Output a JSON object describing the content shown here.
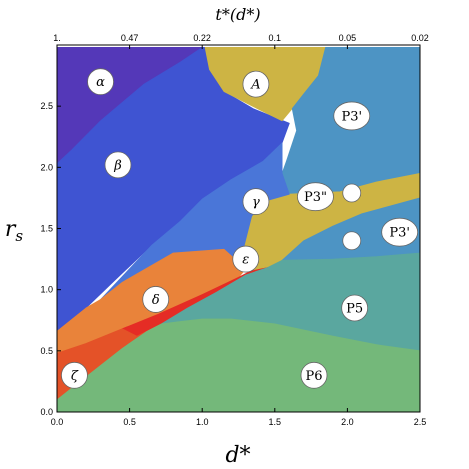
{
  "chart_data": {
    "type": "heatmap",
    "xlabel": "d*",
    "ylabel": "r",
    "ylabel_sub": "s",
    "top_xlabel": "t*(d*)",
    "xlim": [
      0,
      2.5
    ],
    "ylim": [
      0,
      3.0
    ],
    "x_ticks": [
      "0.0",
      "0.5",
      "1.0",
      "1.5",
      "2.0",
      "2.5"
    ],
    "x_tick_values": [
      0,
      0.5,
      1.0,
      1.5,
      2.0,
      2.5
    ],
    "y_ticks": [
      "0.0",
      "0.5",
      "1.0",
      "1.5",
      "2.0",
      "2.5"
    ],
    "y_tick_values": [
      0,
      0.5,
      1.0,
      1.5,
      2.0,
      2.5
    ],
    "top_ticks": [
      "1.",
      "0.47",
      "0.22",
      "0.1",
      "0.05",
      "0.02"
    ],
    "top_tick_positions": [
      0,
      0.5,
      1.0,
      1.5,
      2.0,
      2.5
    ],
    "colors": {
      "alpha": "#5438b8",
      "beta": "#3f54d2",
      "A": "#cdb444",
      "P3p": "#4d94c4",
      "gamma": "#4a76d8",
      "delta": "#e9833a",
      "epsilon": "#e52c25",
      "zeta": "#e45228",
      "P5": "#5aa79f",
      "P6": "#74b87a"
    },
    "regions": [
      {
        "name": "alpha",
        "label": "α",
        "italic": true,
        "color_key": "alpha",
        "label_pos": [
          0.3,
          2.7
        ],
        "polygon": [
          [
            0,
            2.98
          ],
          [
            1.0,
            2.98
          ],
          [
            0.85,
            2.86
          ],
          [
            0.6,
            2.68
          ],
          [
            0.3,
            2.38
          ],
          [
            0.1,
            2.14
          ],
          [
            0,
            2.03
          ]
        ]
      },
      {
        "name": "beta",
        "label": "β",
        "italic": true,
        "color_key": "beta",
        "label_pos": [
          0.42,
          2.02
        ],
        "polygon": [
          [
            0,
            2.03
          ],
          [
            0.1,
            2.14
          ],
          [
            0.3,
            2.38
          ],
          [
            0.6,
            2.68
          ],
          [
            0.85,
            2.86
          ],
          [
            1.0,
            2.98
          ],
          [
            1.02,
            2.98
          ],
          [
            1.05,
            2.8
          ],
          [
            1.15,
            2.62
          ],
          [
            1.35,
            2.48
          ],
          [
            1.6,
            2.36
          ],
          [
            1.55,
            2.2
          ],
          [
            1.42,
            2.05
          ],
          [
            1.2,
            1.9
          ],
          [
            1.0,
            1.74
          ],
          [
            0.85,
            1.56
          ],
          [
            0.65,
            1.36
          ],
          [
            0.4,
            1.08
          ],
          [
            0.2,
            0.85
          ],
          [
            0,
            0.66
          ]
        ]
      },
      {
        "name": "A",
        "label": "A",
        "italic": true,
        "color_key": "A",
        "label_pos": [
          1.37,
          2.68
        ],
        "polygon": [
          [
            1.02,
            2.98
          ],
          [
            1.85,
            2.98
          ],
          [
            1.8,
            2.75
          ],
          [
            1.7,
            2.6
          ],
          [
            1.62,
            2.48
          ],
          [
            1.55,
            2.38
          ],
          [
            1.38,
            2.48
          ],
          [
            1.15,
            2.62
          ],
          [
            1.05,
            2.8
          ]
        ]
      },
      {
        "name": "P3p-top",
        "label": "P3'",
        "italic": false,
        "color_key": "P3p",
        "label_pos": [
          2.03,
          2.42
        ],
        "polygon": [
          [
            1.85,
            2.98
          ],
          [
            2.5,
            2.98
          ],
          [
            2.5,
            1.95
          ],
          [
            2.2,
            1.88
          ],
          [
            1.95,
            1.8
          ],
          [
            1.7,
            1.78
          ],
          [
            1.6,
            1.78
          ],
          [
            1.55,
            1.95
          ],
          [
            1.58,
            2.05
          ],
          [
            1.65,
            2.3
          ],
          [
            1.62,
            2.48
          ],
          [
            1.7,
            2.6
          ],
          [
            1.8,
            2.75
          ]
        ]
      },
      {
        "name": "P3pp",
        "label": "P3\"",
        "italic": false,
        "color_key": "A",
        "label_pos": [
          1.78,
          1.76
        ],
        "polygon": [
          [
            1.6,
            1.78
          ],
          [
            1.95,
            1.8
          ],
          [
            2.2,
            1.88
          ],
          [
            2.5,
            1.95
          ],
          [
            2.5,
            1.75
          ],
          [
            2.1,
            1.62
          ],
          [
            1.9,
            1.52
          ],
          [
            1.7,
            1.4
          ],
          [
            1.55,
            1.24
          ],
          [
            1.45,
            1.18
          ],
          [
            1.33,
            1.15
          ],
          [
            1.28,
            1.32
          ],
          [
            1.34,
            1.6
          ],
          [
            1.42,
            1.72
          ]
        ]
      },
      {
        "name": "P3p-right",
        "label": "P3'",
        "italic": false,
        "color_key": "P3p",
        "label_pos": [
          2.36,
          1.47
        ],
        "polygon": [
          [
            1.55,
            1.24
          ],
          [
            1.7,
            1.4
          ],
          [
            1.9,
            1.52
          ],
          [
            2.1,
            1.62
          ],
          [
            2.5,
            1.75
          ],
          [
            2.5,
            1.3
          ],
          [
            2.2,
            1.27
          ],
          [
            1.9,
            1.25
          ]
        ]
      },
      {
        "name": "gamma",
        "label": "γ",
        "italic": true,
        "color_key": "gamma",
        "label_pos": [
          1.37,
          1.72
        ],
        "polygon": [
          [
            0.3,
            0.92
          ],
          [
            0.65,
            1.36
          ],
          [
            0.85,
            1.56
          ],
          [
            1.0,
            1.74
          ],
          [
            1.2,
            1.9
          ],
          [
            1.42,
            2.05
          ],
          [
            1.55,
            2.2
          ],
          [
            1.55,
            1.95
          ],
          [
            1.6,
            1.78
          ],
          [
            1.42,
            1.72
          ],
          [
            1.34,
            1.6
          ],
          [
            1.28,
            1.32
          ],
          [
            1.3,
            1.17
          ],
          [
            1.15,
            1.33
          ],
          [
            0.8,
            1.3
          ],
          [
            0.45,
            1.06
          ]
        ]
      },
      {
        "name": "delta",
        "label": "δ",
        "italic": true,
        "color_key": "delta",
        "label_pos": [
          0.68,
          0.92
        ],
        "polygon": [
          [
            0,
            0.66
          ],
          [
            0.2,
            0.85
          ],
          [
            0.3,
            0.92
          ],
          [
            0.45,
            1.06
          ],
          [
            0.8,
            1.3
          ],
          [
            1.15,
            1.33
          ],
          [
            1.3,
            1.17
          ],
          [
            1.25,
            1.1
          ],
          [
            1.0,
            0.96
          ],
          [
            0.7,
            0.8
          ],
          [
            0.45,
            0.68
          ],
          [
            0.2,
            0.56
          ],
          [
            0,
            0.48
          ]
        ]
      },
      {
        "name": "epsilon",
        "label": "ε",
        "italic": true,
        "color_key": "epsilon",
        "label_pos": [
          1.3,
          1.25
        ],
        "polygon": [
          [
            0.45,
            0.68
          ],
          [
            0.7,
            0.8
          ],
          [
            1.0,
            0.96
          ],
          [
            1.25,
            1.1
          ],
          [
            1.33,
            1.15
          ],
          [
            1.45,
            1.18
          ],
          [
            1.3,
            1.12
          ],
          [
            1.1,
            0.98
          ],
          [
            0.9,
            0.85
          ],
          [
            0.72,
            0.72
          ],
          [
            0.55,
            0.62
          ]
        ]
      },
      {
        "name": "zeta",
        "label": "ζ",
        "italic": true,
        "color_key": "zeta",
        "label_pos": [
          0.12,
          0.3
        ],
        "polygon": [
          [
            0,
            0.48
          ],
          [
            0.2,
            0.56
          ],
          [
            0.45,
            0.68
          ],
          [
            0.55,
            0.62
          ],
          [
            0.72,
            0.72
          ],
          [
            0.62,
            0.66
          ],
          [
            0.45,
            0.52
          ],
          [
            0.3,
            0.38
          ],
          [
            0.15,
            0.24
          ],
          [
            0,
            0.1
          ]
        ]
      },
      {
        "name": "P5",
        "label": "P5",
        "italic": false,
        "color_key": "P5",
        "label_pos": [
          2.05,
          0.85
        ],
        "polygon": [
          [
            0.72,
            0.72
          ],
          [
            0.9,
            0.85
          ],
          [
            1.1,
            0.98
          ],
          [
            1.3,
            1.12
          ],
          [
            1.45,
            1.18
          ],
          [
            1.55,
            1.24
          ],
          [
            1.9,
            1.25
          ],
          [
            2.2,
            1.27
          ],
          [
            2.5,
            1.3
          ],
          [
            2.5,
            0.5
          ],
          [
            2.2,
            0.55
          ],
          [
            1.9,
            0.62
          ],
          [
            1.5,
            0.72
          ],
          [
            1.2,
            0.76
          ],
          [
            1.0,
            0.76
          ],
          [
            0.85,
            0.74
          ]
        ]
      },
      {
        "name": "P6",
        "label": "P6",
        "italic": false,
        "color_key": "P6",
        "label_pos": [
          1.77,
          0.3
        ],
        "polygon": [
          [
            0,
            0
          ],
          [
            2.5,
            0
          ],
          [
            2.5,
            0.5
          ],
          [
            2.2,
            0.55
          ],
          [
            1.9,
            0.62
          ],
          [
            1.5,
            0.72
          ],
          [
            1.2,
            0.76
          ],
          [
            1.0,
            0.76
          ],
          [
            0.85,
            0.74
          ],
          [
            0.72,
            0.72
          ],
          [
            0.62,
            0.66
          ],
          [
            0.45,
            0.52
          ],
          [
            0.3,
            0.38
          ],
          [
            0.15,
            0.24
          ],
          [
            0,
            0.1
          ]
        ]
      }
    ],
    "markers": [
      {
        "name": "marker-circle-upper",
        "x": 2.03,
        "y": 1.79
      },
      {
        "name": "marker-circle-lower",
        "x": 2.03,
        "y": 1.4
      }
    ]
  }
}
